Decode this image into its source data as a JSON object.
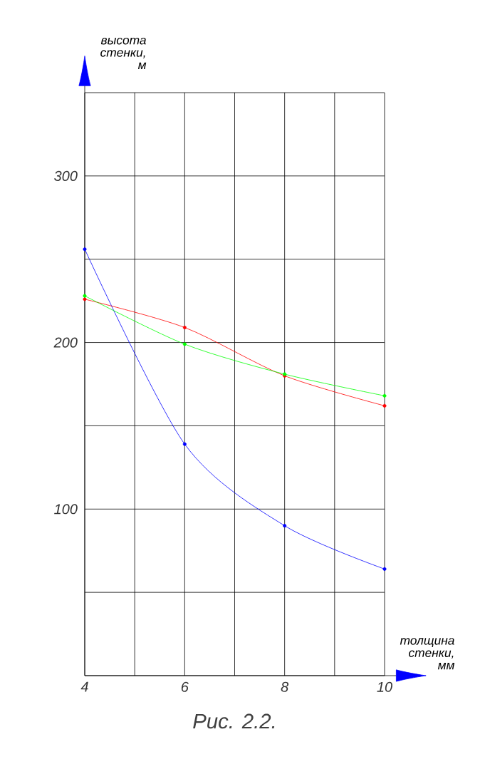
{
  "chart_data": {
    "type": "line",
    "title": "Рис.  2.2.",
    "xlabel": "толщина стенки, мм",
    "ylabel": "высота стенки, м",
    "x": [
      4,
      6,
      8,
      10
    ],
    "series": [
      {
        "color": "#0000ff",
        "values": [
          256,
          139,
          90,
          64
        ]
      },
      {
        "color": "#ff0000",
        "values": [
          226,
          209,
          180,
          162
        ]
      },
      {
        "color": "#00ff00",
        "values": [
          228,
          199,
          181,
          168
        ]
      }
    ],
    "xlim": [
      4,
      10
    ],
    "ylim": [
      0,
      350
    ],
    "xticks": [
      4,
      {
        "value": 5,
        "label": null
      },
      6,
      {
        "value": 7,
        "label": null
      },
      8,
      {
        "value": 9,
        "label": null
      },
      10
    ],
    "yticks": [
      {
        "value": 0,
        "label": null
      },
      {
        "value": 50,
        "label": null
      },
      100,
      {
        "value": 150,
        "label": null
      },
      200,
      {
        "value": 250,
        "label": null
      },
      300,
      {
        "value": 350,
        "label": null
      }
    ],
    "grid": true,
    "marker": "circle",
    "line_style": "solid"
  }
}
